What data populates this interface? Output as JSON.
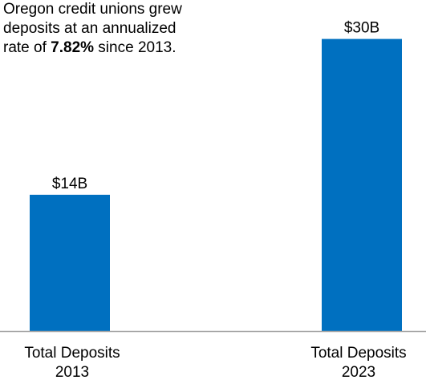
{
  "annotation": {
    "line1": "Oregon credit unions grew",
    "line2": "deposits at an annualized",
    "line3_prefix": "rate of ",
    "line3_bold": "7.82%",
    "line3_suffix": " since 2013."
  },
  "colors": {
    "bar": "#0070C0",
    "axis": "#A6A6A6",
    "text": "#000000"
  },
  "chart_data": {
    "type": "bar",
    "categories": [
      "Total Deposits 2013",
      "Total Deposits 2023"
    ],
    "category_lines": [
      [
        "Total Deposits",
        "2013"
      ],
      [
        "Total Deposits",
        "2023"
      ]
    ],
    "values": [
      14,
      30
    ],
    "data_labels": [
      "$14B",
      "$30B"
    ],
    "ylim": [
      0,
      34
    ],
    "grid": false,
    "legend": "none"
  }
}
